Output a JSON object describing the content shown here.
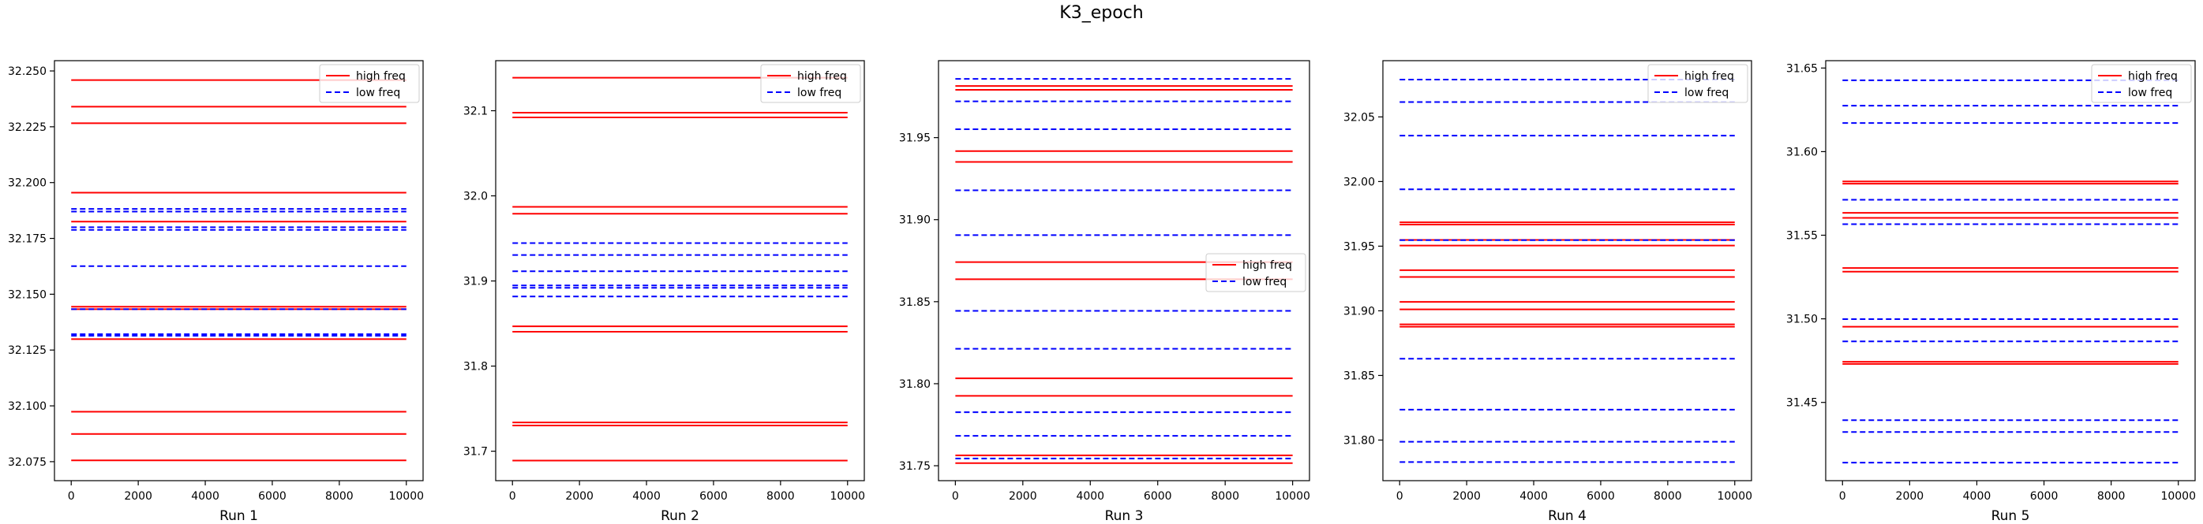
{
  "figure": {
    "title": "K3_epoch"
  },
  "chart_data": [
    {
      "type": "line",
      "xlabel": "Run 1",
      "xlim": [
        -500,
        10500
      ],
      "ylim": [
        32.0665,
        32.2546
      ],
      "x_ticks": [
        0,
        2000,
        4000,
        6000,
        8000,
        10000
      ],
      "y_ticks": [
        32.075,
        32.1,
        32.125,
        32.15,
        32.175,
        32.2,
        32.225,
        32.25
      ],
      "y_tick_labels": [
        "32.075",
        "32.100",
        "32.125",
        "32.150",
        "32.175",
        "32.200",
        "32.225",
        "32.250"
      ],
      "legend": {
        "position": "top-right",
        "entries": [
          "high freq",
          "low freq"
        ]
      },
      "series": [
        {
          "name": "high freq",
          "color": "#ff0000",
          "style": "solid",
          "x": [
            0,
            10000
          ],
          "levels": [
            32.2459,
            32.234,
            32.2266,
            32.1955,
            32.1825,
            32.1444,
            32.1433,
            32.1299,
            32.0974,
            32.0874,
            32.0756
          ]
        },
        {
          "name": "low freq",
          "color": "#0000ff",
          "style": "dashed",
          "x": [
            0,
            10000
          ],
          "levels": [
            32.1882,
            32.187,
            32.18,
            32.1788,
            32.1626,
            32.1433,
            32.1321,
            32.1314
          ]
        }
      ]
    },
    {
      "type": "line",
      "xlabel": "Run 2",
      "xlim": [
        -500,
        10500
      ],
      "ylim": [
        31.6654,
        32.1588
      ],
      "x_ticks": [
        0,
        2000,
        4000,
        6000,
        8000,
        10000
      ],
      "y_ticks": [
        31.7,
        31.8,
        31.9,
        32.0,
        32.1
      ],
      "y_tick_labels": [
        "31.7",
        "31.8",
        "31.9",
        "32.0",
        "32.1"
      ],
      "legend": {
        "position": "top-right",
        "entries": [
          "high freq",
          "low freq"
        ]
      },
      "series": [
        {
          "name": "high freq",
          "color": "#ff0000",
          "style": "solid",
          "x": [
            0,
            10000
          ],
          "levels": [
            32.1388,
            32.0977,
            32.0922,
            31.9871,
            31.979,
            31.8467,
            31.8404,
            31.7338,
            31.7302,
            31.689
          ]
        },
        {
          "name": "low freq",
          "color": "#0000ff",
          "style": "dashed",
          "x": [
            0,
            10000
          ],
          "levels": [
            31.9445,
            31.9305,
            31.9114,
            31.8947,
            31.892,
            31.8818
          ]
        }
      ]
    },
    {
      "type": "line",
      "xlabel": "Run 3",
      "xlim": [
        -500,
        10500
      ],
      "ylim": [
        31.7409,
        31.9969
      ],
      "x_ticks": [
        0,
        2000,
        4000,
        6000,
        8000,
        10000
      ],
      "y_ticks": [
        31.75,
        31.8,
        31.85,
        31.9,
        31.95
      ],
      "y_tick_labels": [
        "31.75",
        "31.80",
        "31.85",
        "31.90",
        "31.95"
      ],
      "legend": {
        "position": "center-right",
        "entries": [
          "high freq",
          "low freq"
        ]
      },
      "series": [
        {
          "name": "high freq",
          "color": "#ff0000",
          "style": "solid",
          "x": [
            0,
            10000
          ],
          "levels": [
            31.9815,
            31.9791,
            31.9418,
            31.9352,
            31.8741,
            31.8637,
            31.8033,
            31.7926,
            31.7563,
            31.7516
          ]
        },
        {
          "name": "low freq",
          "color": "#0000ff",
          "style": "dashed",
          "x": [
            0,
            10000
          ],
          "levels": [
            31.9858,
            31.9721,
            31.9551,
            31.9179,
            31.8906,
            31.8444,
            31.8213,
            31.7826,
            31.7682,
            31.7544
          ]
        }
      ]
    },
    {
      "type": "line",
      "xlabel": "Run 4",
      "xlim": [
        -500,
        10500
      ],
      "ylim": [
        31.7686,
        32.0935
      ],
      "x_ticks": [
        0,
        2000,
        4000,
        6000,
        8000,
        10000
      ],
      "y_ticks": [
        31.8,
        31.85,
        31.9,
        31.95,
        32.0,
        32.05
      ],
      "y_tick_labels": [
        "31.80",
        "31.85",
        "31.90",
        "31.95",
        "32.00",
        "32.05"
      ],
      "legend": {
        "position": "top-right",
        "entries": [
          "high freq",
          "low freq"
        ]
      },
      "series": [
        {
          "name": "high freq",
          "color": "#ff0000",
          "style": "solid",
          "x": [
            0,
            10000
          ],
          "levels": [
            31.9685,
            31.9667,
            31.9548,
            31.9505,
            31.9314,
            31.9262,
            31.9069,
            31.9011,
            31.8895,
            31.8877
          ]
        },
        {
          "name": "low freq",
          "color": "#0000ff",
          "style": "dashed",
          "x": [
            0,
            10000
          ],
          "levels": [
            32.0789,
            32.0615,
            32.0355,
            31.994,
            31.9547,
            31.8629,
            31.8235,
            31.7987,
            31.783
          ]
        }
      ]
    },
    {
      "type": "line",
      "xlabel": "Run 5",
      "xlim": [
        -500,
        10500
      ],
      "ylim": [
        31.4032,
        31.6544
      ],
      "x_ticks": [
        0,
        2000,
        4000,
        6000,
        8000,
        10000
      ],
      "y_ticks": [
        31.45,
        31.5,
        31.55,
        31.6,
        31.65
      ],
      "y_tick_labels": [
        "31.45",
        "31.50",
        "31.55",
        "31.60",
        "31.65"
      ],
      "legend": {
        "position": "top-right",
        "entries": [
          "high freq",
          "low freq"
        ]
      },
      "series": [
        {
          "name": "high freq",
          "color": "#ff0000",
          "style": "solid",
          "x": [
            0,
            10000
          ],
          "levels": [
            31.5822,
            31.5808,
            31.5634,
            31.5604,
            31.5304,
            31.5282,
            31.4953,
            31.4743,
            31.473
          ]
        },
        {
          "name": "low freq",
          "color": "#0000ff",
          "style": "dashed",
          "x": [
            0,
            10000
          ],
          "levels": [
            31.6427,
            31.6275,
            31.6171,
            31.5712,
            31.5566,
            31.4998,
            31.4865,
            31.4394,
            31.4323,
            31.414
          ]
        }
      ]
    }
  ]
}
